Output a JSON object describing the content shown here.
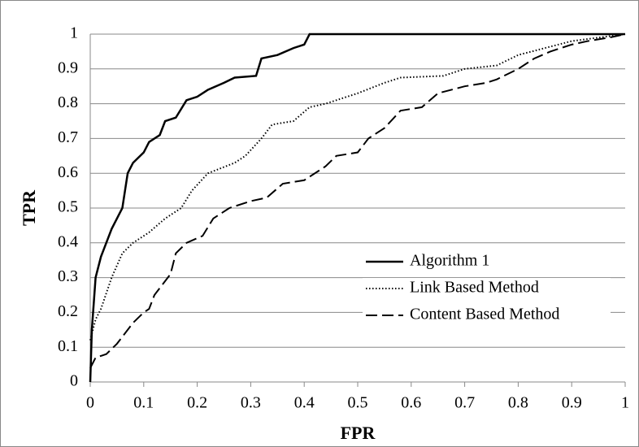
{
  "chart_data": {
    "type": "line",
    "xlabel": "FPR",
    "ylabel": "TPR",
    "xlim": [
      0,
      1
    ],
    "ylim": [
      0,
      1
    ],
    "xticks": [
      0,
      0.1,
      0.2,
      0.3,
      0.4,
      0.5,
      0.6,
      0.7,
      0.8,
      0.9,
      1
    ],
    "yticks": [
      0,
      0.1,
      0.2,
      0.3,
      0.4,
      0.5,
      0.6,
      0.7,
      0.8,
      0.9,
      1
    ],
    "grid": true,
    "legend": "lower right",
    "series": [
      {
        "name": "Algorithm 1",
        "color": "#000000",
        "dash": "solid",
        "x": [
          0,
          0.003,
          0.01,
          0.02,
          0.03,
          0.04,
          0.05,
          0.06,
          0.065,
          0.07,
          0.08,
          0.1,
          0.11,
          0.13,
          0.14,
          0.16,
          0.18,
          0.2,
          0.22,
          0.25,
          0.27,
          0.31,
          0.32,
          0.35,
          0.38,
          0.4,
          0.41,
          0.45,
          1
        ],
        "values": [
          0,
          0.15,
          0.3,
          0.36,
          0.4,
          0.44,
          0.47,
          0.5,
          0.55,
          0.6,
          0.63,
          0.66,
          0.69,
          0.71,
          0.75,
          0.76,
          0.81,
          0.82,
          0.84,
          0.86,
          0.875,
          0.88,
          0.93,
          0.94,
          0.96,
          0.97,
          1,
          1,
          1
        ]
      },
      {
        "name": "Link Based Method",
        "color": "#000000",
        "dash": "dotted",
        "x": [
          0,
          0.01,
          0.02,
          0.04,
          0.06,
          0.08,
          0.11,
          0.14,
          0.17,
          0.19,
          0.22,
          0.27,
          0.29,
          0.32,
          0.34,
          0.38,
          0.41,
          0.44,
          0.5,
          0.55,
          0.58,
          0.66,
          0.7,
          0.76,
          0.8,
          0.85,
          0.9,
          0.95,
          1
        ],
        "values": [
          0.12,
          0.18,
          0.21,
          0.3,
          0.37,
          0.4,
          0.43,
          0.47,
          0.5,
          0.55,
          0.6,
          0.63,
          0.65,
          0.7,
          0.74,
          0.75,
          0.79,
          0.8,
          0.83,
          0.86,
          0.875,
          0.88,
          0.9,
          0.91,
          0.94,
          0.96,
          0.98,
          0.99,
          1
        ]
      },
      {
        "name": "Content Based Method",
        "color": "#000000",
        "dash": "dashed",
        "x": [
          0,
          0.01,
          0.03,
          0.05,
          0.08,
          0.1,
          0.11,
          0.12,
          0.15,
          0.16,
          0.18,
          0.21,
          0.23,
          0.26,
          0.3,
          0.33,
          0.36,
          0.4,
          0.44,
          0.46,
          0.5,
          0.52,
          0.55,
          0.58,
          0.62,
          0.65,
          0.7,
          0.74,
          0.76,
          0.8,
          0.83,
          0.86,
          0.9,
          0.93,
          0.97,
          1
        ],
        "values": [
          0.04,
          0.07,
          0.08,
          0.11,
          0.17,
          0.2,
          0.21,
          0.25,
          0.31,
          0.37,
          0.4,
          0.42,
          0.47,
          0.5,
          0.52,
          0.53,
          0.57,
          0.58,
          0.62,
          0.65,
          0.66,
          0.7,
          0.73,
          0.78,
          0.79,
          0.83,
          0.85,
          0.86,
          0.87,
          0.9,
          0.93,
          0.95,
          0.97,
          0.98,
          0.99,
          1
        ]
      }
    ]
  }
}
